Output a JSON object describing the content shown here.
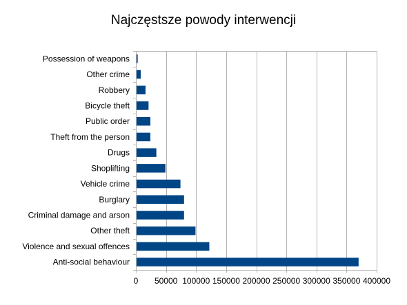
{
  "chart_data": {
    "type": "bar",
    "orientation": "horizontal",
    "title": "Najczęstsze powody interwencji",
    "categories": [
      "Anti-social behaviour",
      "Violence and sexual offences",
      "Other theft",
      "Criminal damage and arson",
      "Burglary",
      "Vehicle crime",
      "Shoplifting",
      "Drugs",
      "Theft from the person",
      "Public order",
      "Bicycle theft",
      "Robbery",
      "Other crime",
      "Possession of weapons"
    ],
    "values": [
      370000,
      122000,
      99000,
      80000,
      80000,
      74000,
      49000,
      34000,
      24000,
      24000,
      21000,
      16000,
      8000,
      3000
    ],
    "xlim": [
      0,
      400000
    ],
    "xticks": [
      0,
      50000,
      100000,
      150000,
      200000,
      250000,
      300000,
      350000,
      400000
    ],
    "xlabel": "",
    "ylabel": "",
    "grid": true,
    "legend": "none",
    "bar_color": "#004586",
    "grid_color": "#b3b3b3"
  }
}
